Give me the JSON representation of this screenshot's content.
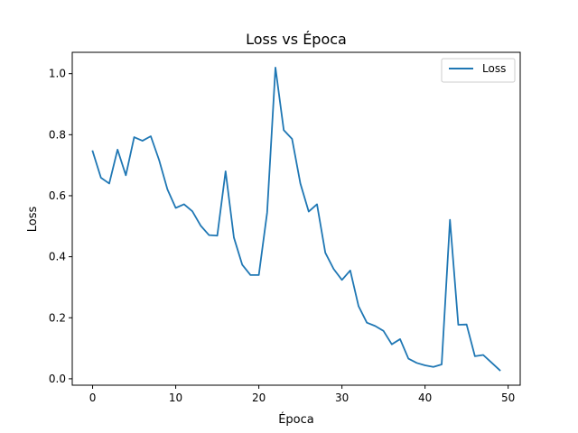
{
  "chart_data": {
    "type": "line",
    "title": "Loss vs Época",
    "xlabel": "Época",
    "ylabel": "Loss",
    "xlim": [
      -2.45,
      51.45
    ],
    "ylim": [
      -0.021,
      1.07
    ],
    "xticks": [
      0,
      10,
      20,
      30,
      40,
      50
    ],
    "xtick_labels": [
      "0",
      "10",
      "20",
      "30",
      "40",
      "50"
    ],
    "yticks": [
      0.0,
      0.2,
      0.4,
      0.6,
      0.8,
      1.0
    ],
    "ytick_labels": [
      "0.0",
      "0.2",
      "0.4",
      "0.6",
      "0.8",
      "1.0"
    ],
    "grid": false,
    "legend_position": "top-right",
    "x": [
      0,
      1,
      2,
      3,
      4,
      5,
      6,
      7,
      8,
      9,
      10,
      11,
      12,
      13,
      14,
      15,
      16,
      17,
      18,
      19,
      20,
      21,
      22,
      23,
      24,
      25,
      26,
      27,
      28,
      29,
      30,
      31,
      32,
      33,
      34,
      35,
      36,
      37,
      38,
      39,
      40,
      41,
      42,
      43,
      44,
      45,
      46,
      47,
      48,
      49
    ],
    "series": [
      {
        "name": "Loss",
        "color": "#1f77b4",
        "values": [
          0.746,
          0.659,
          0.64,
          0.751,
          0.667,
          0.792,
          0.78,
          0.795,
          0.717,
          0.621,
          0.56,
          0.572,
          0.549,
          0.502,
          0.471,
          0.469,
          0.68,
          0.463,
          0.374,
          0.34,
          0.34,
          0.545,
          1.02,
          0.815,
          0.786,
          0.64,
          0.548,
          0.572,
          0.413,
          0.36,
          0.324,
          0.355,
          0.238,
          0.184,
          0.173,
          0.157,
          0.113,
          0.13,
          0.066,
          0.052,
          0.044,
          0.039,
          0.047,
          0.521,
          0.177,
          0.178,
          0.074,
          0.078,
          0.053,
          0.028
        ]
      }
    ]
  }
}
